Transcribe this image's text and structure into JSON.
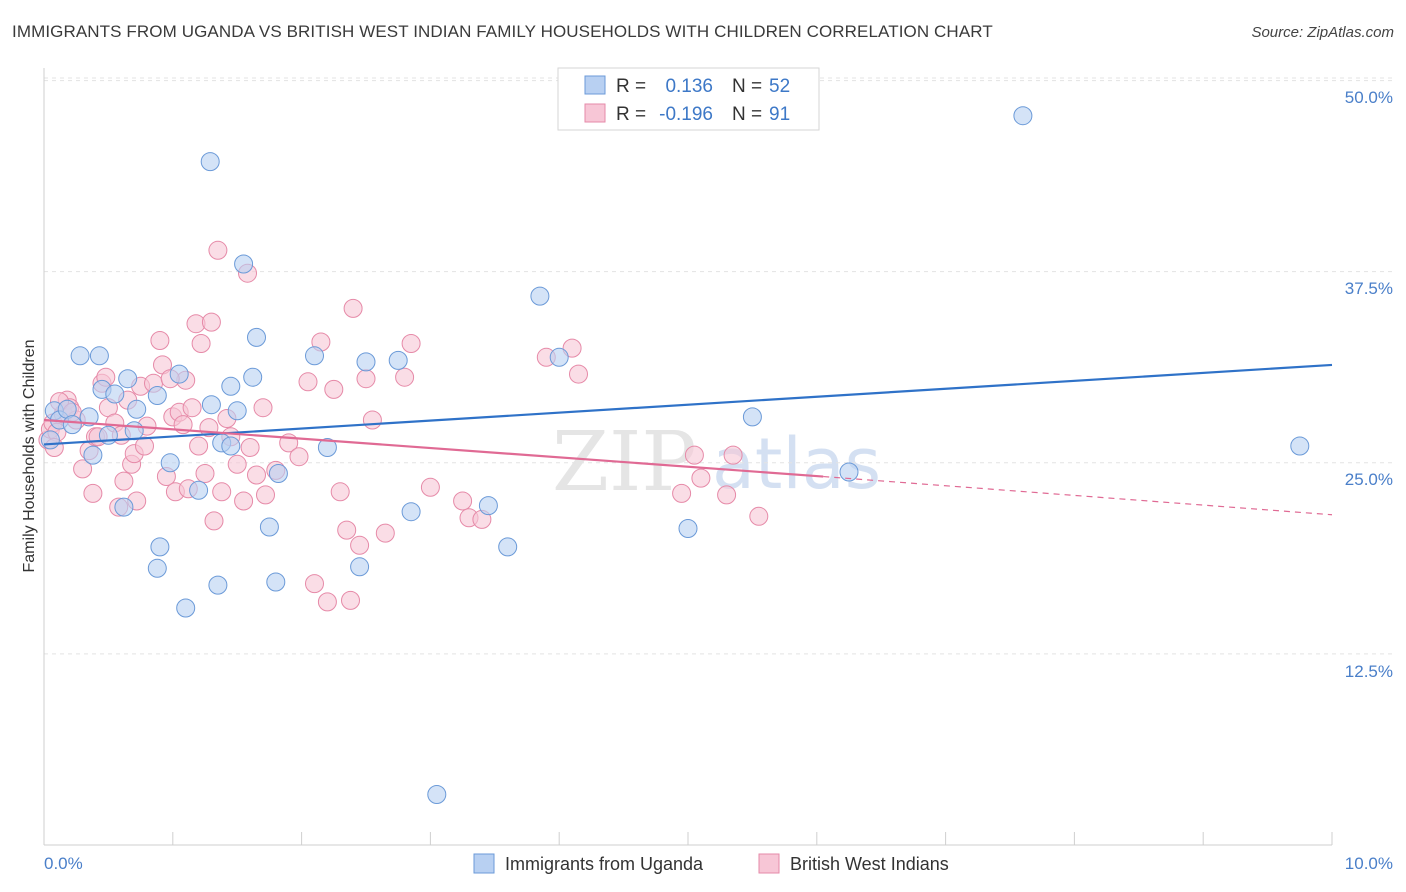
{
  "title": "IMMIGRANTS FROM UGANDA VS BRITISH WEST INDIAN FAMILY HOUSEHOLDS WITH CHILDREN CORRELATION CHART",
  "source": "Source: ZipAtlas.com",
  "colors": {
    "blue_fill": "#b8d0f2",
    "blue_stroke": "#6b9ad8",
    "blue_line": "#2f72c8",
    "pink_fill": "#f7c6d6",
    "pink_stroke": "#e68aa8",
    "pink_line": "#e06a94",
    "grid": "#e3e3e3",
    "tick_text": "#4a7fc9"
  },
  "chart_data": {
    "type": "scatter",
    "title": "IMMIGRANTS FROM UGANDA VS BRITISH WEST INDIAN FAMILY HOUSEHOLDS WITH CHILDREN CORRELATION CHART",
    "xlabel": "",
    "ylabel": "Family Households with Children",
    "xlim": [
      0,
      10
    ],
    "ylim": [
      0,
      52
    ],
    "x_tick_labels": [
      "0.0%",
      "10.0%"
    ],
    "y_ticks": [
      12.5,
      25.0,
      37.5,
      50.0
    ],
    "y_tick_labels": [
      "12.5%",
      "25.0%",
      "37.5%",
      "50.0%"
    ],
    "grid": true,
    "watermark": [
      "ZIP",
      "atlas"
    ],
    "stats": [
      {
        "r_label": "R =",
        "r": "0.136",
        "n_label": "N =",
        "n": "52"
      },
      {
        "r_label": "R =",
        "r": "-0.196",
        "n_label": "N =",
        "n": "91"
      }
    ],
    "series": [
      {
        "name": "Immigrants from Uganda",
        "color": "blue",
        "trend": {
          "x": [
            0,
            10
          ],
          "y": [
            26.2,
            31.4
          ],
          "dashed_to": null
        },
        "points": [
          [
            0.05,
            26.5
          ],
          [
            0.08,
            28.4
          ],
          [
            0.12,
            27.8
          ],
          [
            0.18,
            28.5
          ],
          [
            0.22,
            27.5
          ],
          [
            0.35,
            28.0
          ],
          [
            0.28,
            32.0
          ],
          [
            0.43,
            32.0
          ],
          [
            0.45,
            29.8
          ],
          [
            0.5,
            26.8
          ],
          [
            0.55,
            29.5
          ],
          [
            0.65,
            30.5
          ],
          [
            0.7,
            27.1
          ],
          [
            0.72,
            28.5
          ],
          [
            0.88,
            29.4
          ],
          [
            1.05,
            30.8
          ],
          [
            1.3,
            28.8
          ],
          [
            1.38,
            26.3
          ],
          [
            1.45,
            30.0
          ],
          [
            1.5,
            28.4
          ],
          [
            1.45,
            26.1
          ],
          [
            1.2,
            23.2
          ],
          [
            0.98,
            25.0
          ],
          [
            0.38,
            25.5
          ],
          [
            0.62,
            22.1
          ],
          [
            0.9,
            19.5
          ],
          [
            0.88,
            18.1
          ],
          [
            1.1,
            15.5
          ],
          [
            1.35,
            17.0
          ],
          [
            1.82,
            24.3
          ],
          [
            1.75,
            20.8
          ],
          [
            1.8,
            17.2
          ],
          [
            1.65,
            33.2
          ],
          [
            1.55,
            38.0
          ],
          [
            1.29,
            44.7
          ],
          [
            2.1,
            32.0
          ],
          [
            2.2,
            26.0
          ],
          [
            2.5,
            31.6
          ],
          [
            2.45,
            18.2
          ],
          [
            2.75,
            31.7
          ],
          [
            2.85,
            21.8
          ],
          [
            3.45,
            22.2
          ],
          [
            3.6,
            19.5
          ],
          [
            3.85,
            35.9
          ],
          [
            4.0,
            31.9
          ],
          [
            5.0,
            20.7
          ],
          [
            5.5,
            28.0
          ],
          [
            6.25,
            24.4
          ],
          [
            7.6,
            47.7
          ],
          [
            9.75,
            26.1
          ],
          [
            3.05,
            3.3
          ],
          [
            1.62,
            30.6
          ]
        ]
      },
      {
        "name": "British West Indians",
        "color": "pink",
        "trend": {
          "x": [
            0,
            6.05
          ],
          "y": [
            27.8,
            24.1
          ],
          "dashed_to": {
            "x": 10,
            "y": 21.6
          }
        },
        "points": [
          [
            0.03,
            26.5
          ],
          [
            0.05,
            27.2
          ],
          [
            0.07,
            27.6
          ],
          [
            0.1,
            27.0
          ],
          [
            0.15,
            28.2
          ],
          [
            0.18,
            29.1
          ],
          [
            0.2,
            28.6
          ],
          [
            0.25,
            27.8
          ],
          [
            0.3,
            24.6
          ],
          [
            0.35,
            25.8
          ],
          [
            0.38,
            23.0
          ],
          [
            0.4,
            26.7
          ],
          [
            0.45,
            30.2
          ],
          [
            0.48,
            30.6
          ],
          [
            0.5,
            28.6
          ],
          [
            0.55,
            27.6
          ],
          [
            0.6,
            26.8
          ],
          [
            0.62,
            23.8
          ],
          [
            0.65,
            29.1
          ],
          [
            0.68,
            24.9
          ],
          [
            0.7,
            25.6
          ],
          [
            0.75,
            30.0
          ],
          [
            0.78,
            26.1
          ],
          [
            0.8,
            27.4
          ],
          [
            0.85,
            30.2
          ],
          [
            0.9,
            33.0
          ],
          [
            0.92,
            31.4
          ],
          [
            0.95,
            24.1
          ],
          [
            1.0,
            28.0
          ],
          [
            1.02,
            23.1
          ],
          [
            1.05,
            28.3
          ],
          [
            1.08,
            27.5
          ],
          [
            1.1,
            30.4
          ],
          [
            1.15,
            28.6
          ],
          [
            1.18,
            34.1
          ],
          [
            1.2,
            26.1
          ],
          [
            1.22,
            32.8
          ],
          [
            1.25,
            24.3
          ],
          [
            1.28,
            27.3
          ],
          [
            1.3,
            34.2
          ],
          [
            1.32,
            21.2
          ],
          [
            1.35,
            38.9
          ],
          [
            1.38,
            23.1
          ],
          [
            1.42,
            27.9
          ],
          [
            1.45,
            26.7
          ],
          [
            1.5,
            24.9
          ],
          [
            1.55,
            22.5
          ],
          [
            1.58,
            37.4
          ],
          [
            1.6,
            26.0
          ],
          [
            1.65,
            24.2
          ],
          [
            1.7,
            28.6
          ],
          [
            1.72,
            22.9
          ],
          [
            1.8,
            24.5
          ],
          [
            1.9,
            26.3
          ],
          [
            1.98,
            25.4
          ],
          [
            2.05,
            30.3
          ],
          [
            2.1,
            17.1
          ],
          [
            2.15,
            32.9
          ],
          [
            2.2,
            15.9
          ],
          [
            2.25,
            29.8
          ],
          [
            2.3,
            23.1
          ],
          [
            2.35,
            20.6
          ],
          [
            2.38,
            16.0
          ],
          [
            2.4,
            35.1
          ],
          [
            2.45,
            19.6
          ],
          [
            2.5,
            30.5
          ],
          [
            2.55,
            27.8
          ],
          [
            2.65,
            20.4
          ],
          [
            2.8,
            30.6
          ],
          [
            2.85,
            32.8
          ],
          [
            3.0,
            23.4
          ],
          [
            3.25,
            22.5
          ],
          [
            3.3,
            21.4
          ],
          [
            3.4,
            21.3
          ],
          [
            3.9,
            31.9
          ],
          [
            4.1,
            32.5
          ],
          [
            4.15,
            30.8
          ],
          [
            4.95,
            23.0
          ],
          [
            5.05,
            25.5
          ],
          [
            5.1,
            24.0
          ],
          [
            5.3,
            22.9
          ],
          [
            5.35,
            25.5
          ],
          [
            5.55,
            21.5
          ],
          [
            0.08,
            26.0
          ],
          [
            0.12,
            29.0
          ],
          [
            0.22,
            28.3
          ],
          [
            0.42,
            26.7
          ],
          [
            0.58,
            22.1
          ],
          [
            0.72,
            22.5
          ],
          [
            0.98,
            30.5
          ],
          [
            1.12,
            23.3
          ]
        ]
      }
    ]
  }
}
